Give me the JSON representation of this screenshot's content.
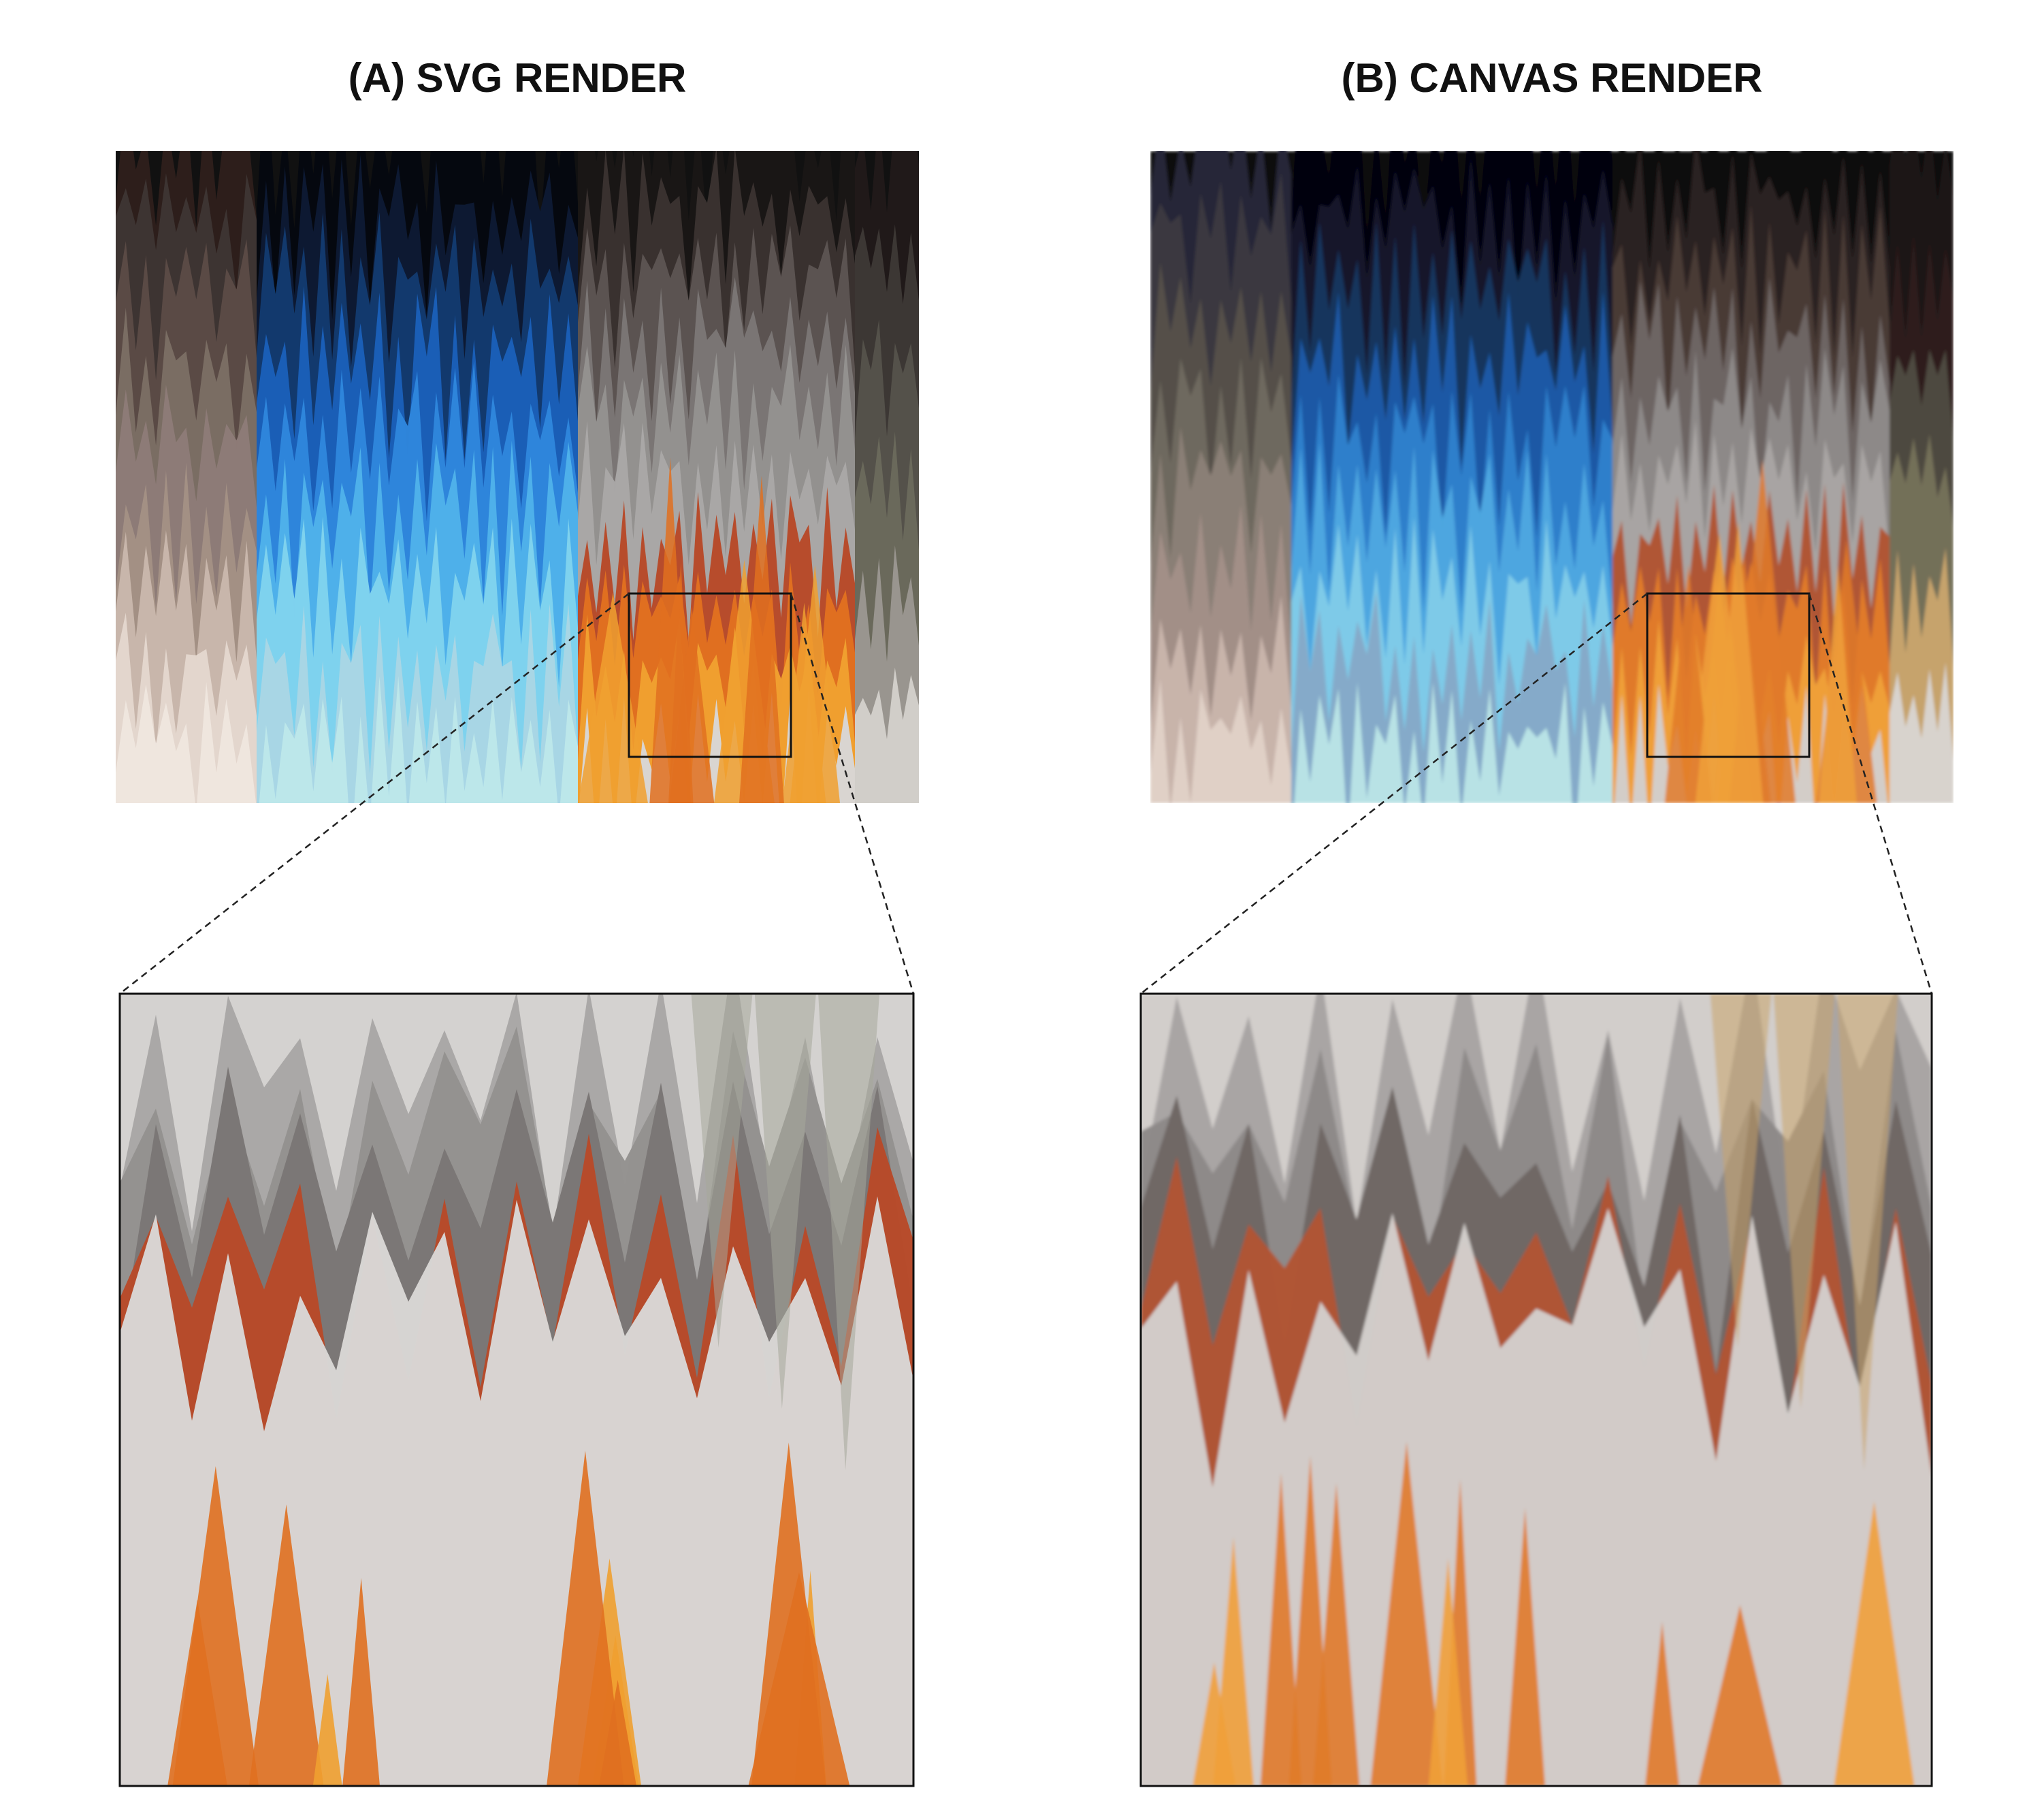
{
  "panels": {
    "a": {
      "title": "(A) SVG RENDER",
      "palette": {
        "left": [
          "#2e1f1c",
          "#3d3533",
          "#5b4a45",
          "#7a6e64",
          "#8e7b77",
          "#a39185",
          "#c9b7ab",
          "#e3d6cd",
          "#efe6de"
        ],
        "blue": [
          "#05080f",
          "#0d1a33",
          "#123a6e",
          "#1b5fb8",
          "#2f86db",
          "#4fb0ea",
          "#7fd2ee",
          "#a9d6e4",
          "#bde7ea"
        ],
        "right": [
          "#1a1615",
          "#3a3230",
          "#5c5452",
          "#7a7675",
          "#949290",
          "#a9a7a6",
          "#b84a2a",
          "#e07020",
          "#f0a030",
          "#d8d6d4"
        ],
        "edge": [
          "#211a1a",
          "#3d3835",
          "#55524a",
          "#6b6a5c",
          "#9a9690",
          "#d2cfca"
        ]
      }
    },
    "b": {
      "title": "(B) CANVAS RENDER",
      "palette": {
        "left": [
          "#262839",
          "#3c3a3f",
          "#55504a",
          "#6f6a5f",
          "#8b7f76",
          "#a29088",
          "#c9b5aa",
          "#e0d0c7"
        ],
        "blue": [
          "#050407",
          "#141a2c",
          "#15355e",
          "#1d5aa6",
          "#2f7fcc",
          "#4ea7e0",
          "#7fcbe8",
          "#86a9c8",
          "#b9e3e6"
        ],
        "right": [
          "#0c0a0a",
          "#2d2422",
          "#4a3b37",
          "#6e6664",
          "#8e8a89",
          "#a8a4a3",
          "#b05534",
          "#e07a2a",
          "#efa03a",
          "#d2cecb"
        ],
        "edge": [
          "#1b1212",
          "#2e1f1f",
          "#4f4a40",
          "#74705a",
          "#c8a46c",
          "#d8d4cf"
        ]
      }
    }
  }
}
